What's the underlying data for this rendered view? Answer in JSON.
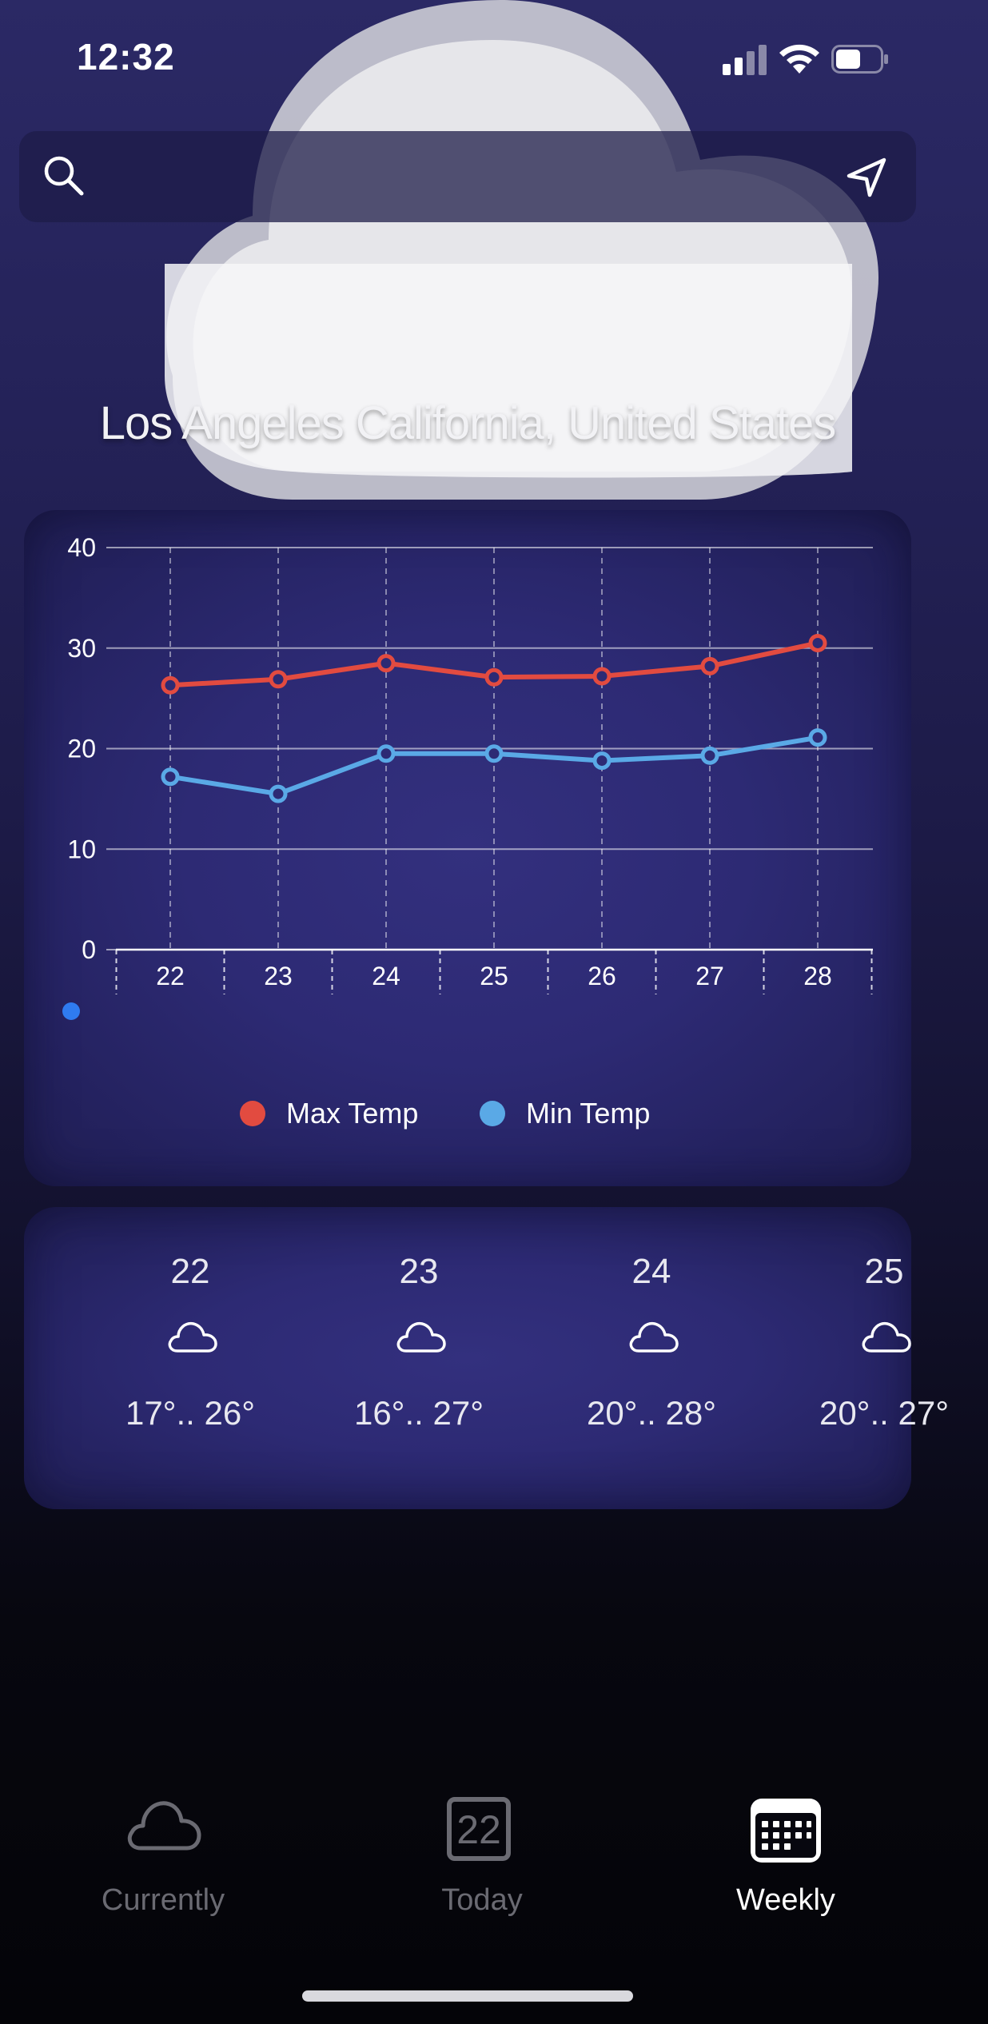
{
  "status_bar": {
    "time": "12:32"
  },
  "search": {
    "placeholder": ""
  },
  "location": {
    "title": "Los Angeles California, United States"
  },
  "chart_data": {
    "type": "line",
    "categories": [
      "22",
      "23",
      "24",
      "25",
      "26",
      "27",
      "28"
    ],
    "y_ticks": [
      "0",
      "10",
      "20",
      "30",
      "40"
    ],
    "ylim": [
      0,
      40
    ],
    "grid": true,
    "legend_position": "bottom",
    "series": [
      {
        "name": "Max Temp",
        "color": "#e24b40",
        "values": [
          26.3,
          26.9,
          28.5,
          27.1,
          27.2,
          28.2,
          30.5
        ]
      },
      {
        "name": "Min Temp",
        "color": "#5aa9e6",
        "values": [
          17.2,
          15.5,
          19.5,
          19.5,
          18.8,
          19.3,
          21.1
        ]
      }
    ]
  },
  "forecast": [
    {
      "day": "22",
      "icon": "cloud-icon",
      "temps": "17°.. 26°"
    },
    {
      "day": "23",
      "icon": "cloud-icon",
      "temps": "16°.. 27°"
    },
    {
      "day": "24",
      "icon": "cloud-icon",
      "temps": "20°.. 28°"
    },
    {
      "day": "25",
      "icon": "cloud-icon",
      "temps": "20°.. 27°"
    }
  ],
  "tabs": [
    {
      "label": "Currently",
      "icon": "cloud-icon",
      "active": false
    },
    {
      "label": "Today",
      "icon": "calendar-day-icon",
      "icon_text": "22",
      "active": false
    },
    {
      "label": "Weekly",
      "icon": "calendar-week-icon",
      "active": true
    }
  ],
  "colors": {
    "active_tab": "#ffffff",
    "inactive_tab": "#6a6a72",
    "max_temp": "#e24b40",
    "min_temp": "#5aa9e6",
    "indicator_dot": "#2f7bf0"
  }
}
